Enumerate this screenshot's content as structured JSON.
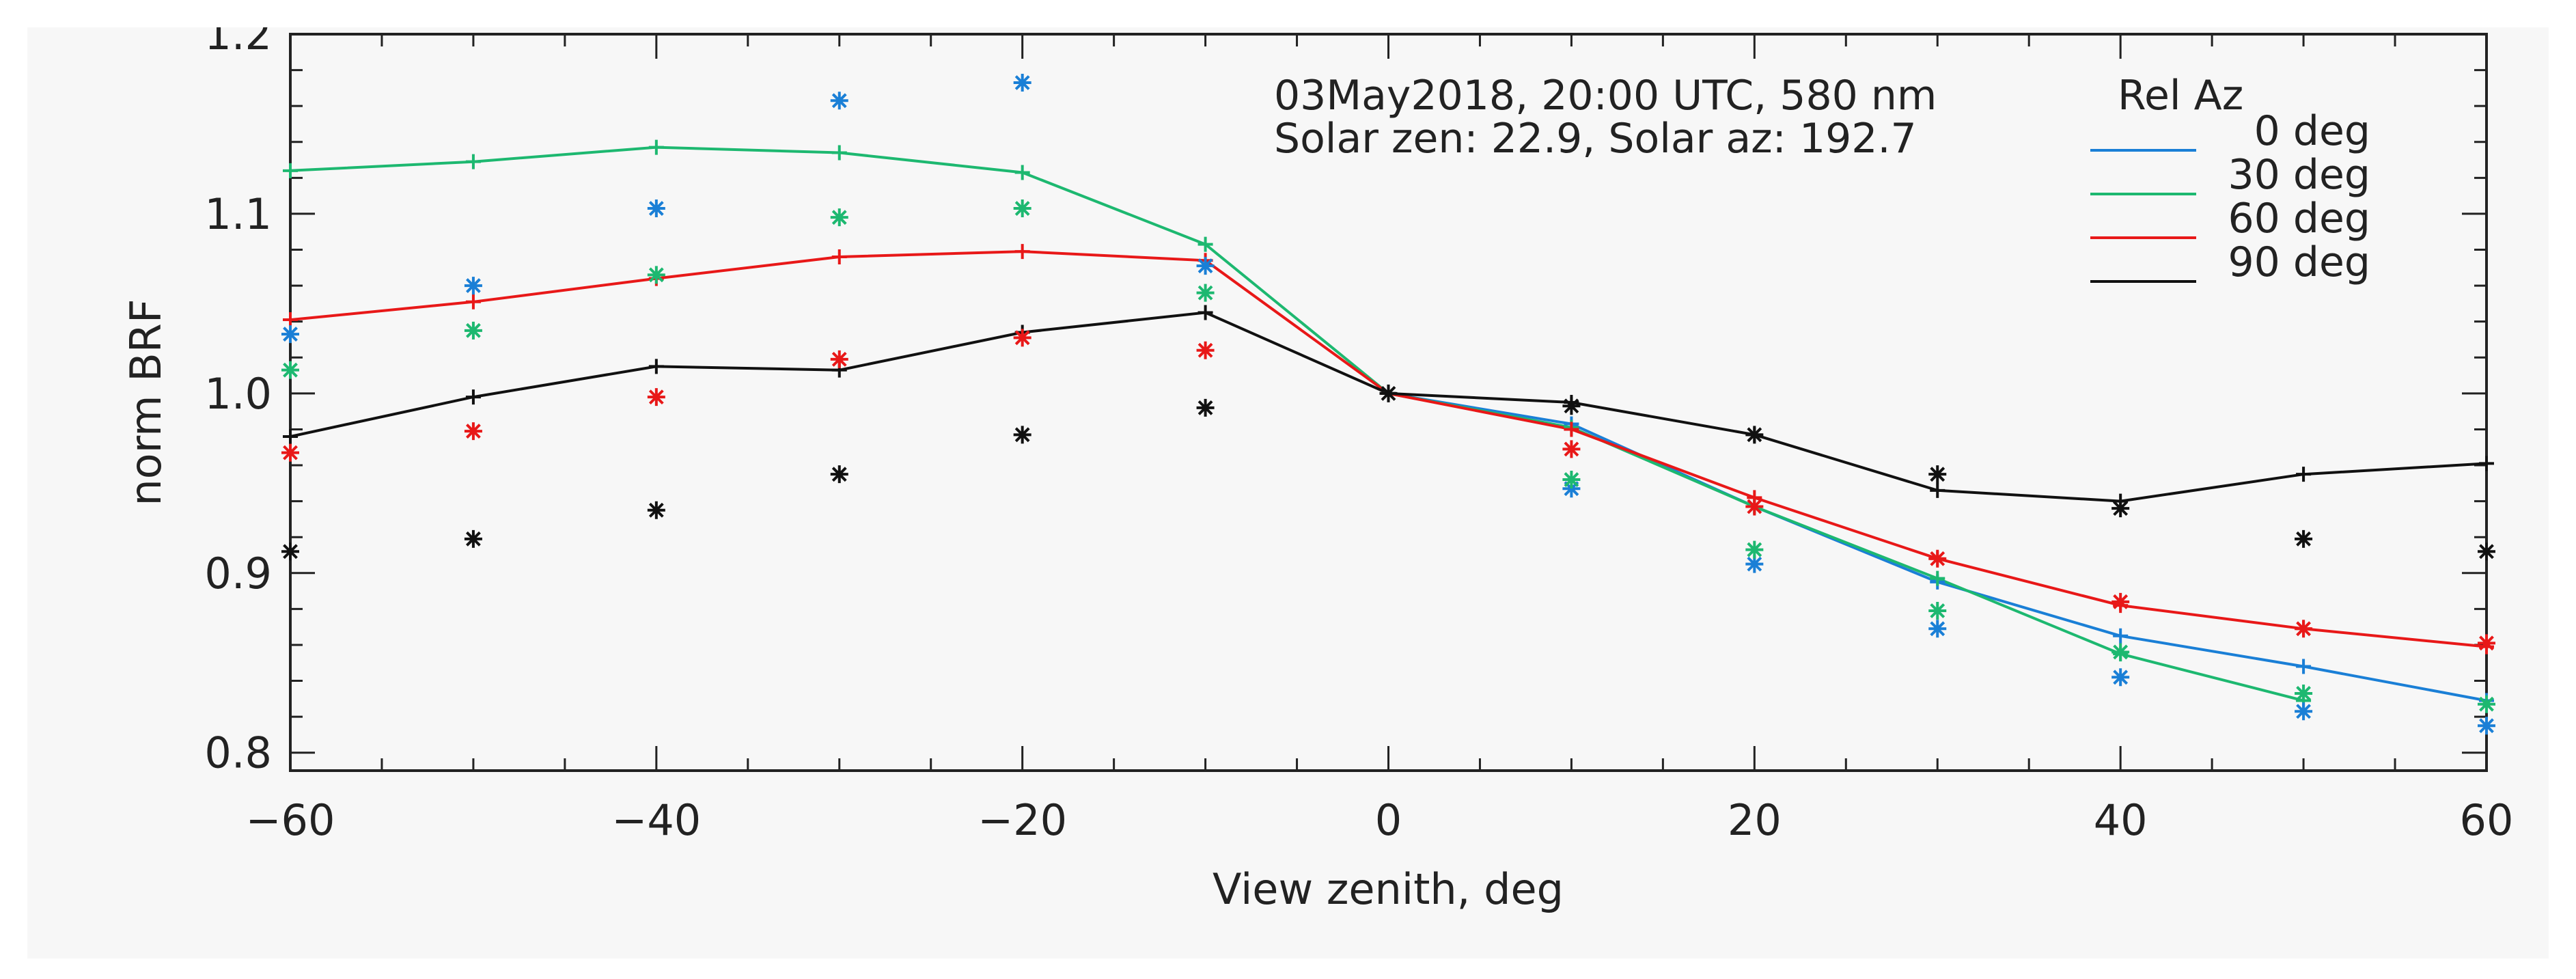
{
  "chart_data": {
    "type": "line",
    "title": "",
    "annotation": {
      "line1": "03May2018, 20:00 UTC, 580 nm",
      "line2": "Solar zen: 22.9, Solar az: 192.7"
    },
    "xlabel": "View zenith, deg",
    "ylabel": "norm BRF",
    "xlim": [
      -60,
      60
    ],
    "ylim": [
      0.79,
      1.2
    ],
    "xticks": [
      -60,
      -40,
      -20,
      0,
      20,
      40,
      60
    ],
    "xtick_labels": [
      "−60",
      "−40",
      "−20",
      "0",
      "20",
      "40",
      "60"
    ],
    "yticks": [
      0.8,
      0.9,
      1.0,
      1.1,
      1.2
    ],
    "ytick_labels": [
      "0.8",
      "0.9",
      "1.0",
      "1.1",
      "1.2"
    ],
    "legend": {
      "title": "Rel Az",
      "position": "top-right",
      "entries": [
        "0 deg",
        "30 deg",
        "60 deg",
        "90 deg"
      ]
    },
    "series": [
      {
        "name": "0 deg",
        "color": "#1a7fd6",
        "model_x": [
          0,
          10,
          20,
          30,
          40,
          50,
          60
        ],
        "model_y": [
          1.0,
          0.983,
          0.937,
          0.895,
          0.865,
          0.848,
          0.829
        ],
        "obs_x": [
          -60,
          -50,
          -40,
          -30,
          -20,
          -10,
          10,
          20,
          30,
          40,
          50,
          60
        ],
        "obs_y": [
          1.033,
          1.06,
          1.103,
          1.163,
          1.173,
          1.071,
          0.947,
          0.905,
          0.869,
          0.842,
          0.823,
          0.815
        ]
      },
      {
        "name": "30 deg",
        "color": "#1db870",
        "model_x": [
          -60,
          -50,
          -40,
          -30,
          -20,
          -10,
          0,
          10,
          20,
          30,
          40,
          50
        ],
        "model_y": [
          1.124,
          1.129,
          1.137,
          1.134,
          1.123,
          1.083,
          1.0,
          0.981,
          0.937,
          0.897,
          0.855,
          0.829
        ],
        "obs_x": [
          -60,
          -50,
          -40,
          -30,
          -20,
          -10,
          10,
          20,
          30,
          40,
          50,
          60
        ],
        "obs_y": [
          1.013,
          1.035,
          1.066,
          1.098,
          1.103,
          1.056,
          0.952,
          0.913,
          0.879,
          0.856,
          0.833,
          0.827
        ]
      },
      {
        "name": "60 deg",
        "color": "#e81818",
        "model_x": [
          -60,
          -50,
          -40,
          -30,
          -20,
          -10,
          0,
          10,
          20,
          30,
          40,
          50,
          60
        ],
        "model_y": [
          1.041,
          1.051,
          1.064,
          1.076,
          1.079,
          1.074,
          1.0,
          0.98,
          0.942,
          0.908,
          0.882,
          0.869,
          0.859
        ],
        "obs_x": [
          -60,
          -50,
          -40,
          -30,
          -20,
          -10,
          10,
          20,
          30,
          40,
          50,
          60
        ],
        "obs_y": [
          0.967,
          0.979,
          0.998,
          1.019,
          1.031,
          1.024,
          0.969,
          0.937,
          0.908,
          0.884,
          0.869,
          0.861
        ]
      },
      {
        "name": "90 deg",
        "color": "#111111",
        "model_x": [
          -60,
          -50,
          -40,
          -30,
          -20,
          -10,
          0,
          10,
          20,
          30,
          40,
          50,
          60
        ],
        "model_y": [
          0.976,
          0.998,
          1.015,
          1.013,
          1.034,
          1.045,
          1.0,
          0.995,
          0.977,
          0.946,
          0.94,
          0.955,
          0.961
        ],
        "obs_x": [
          -60,
          -50,
          -40,
          -30,
          -20,
          -10,
          0,
          10,
          20,
          30,
          40,
          50,
          60
        ],
        "obs_y": [
          0.912,
          0.919,
          0.935,
          0.955,
          0.977,
          0.992,
          1.0,
          0.993,
          0.977,
          0.955,
          0.936,
          0.919,
          0.912
        ]
      }
    ]
  }
}
